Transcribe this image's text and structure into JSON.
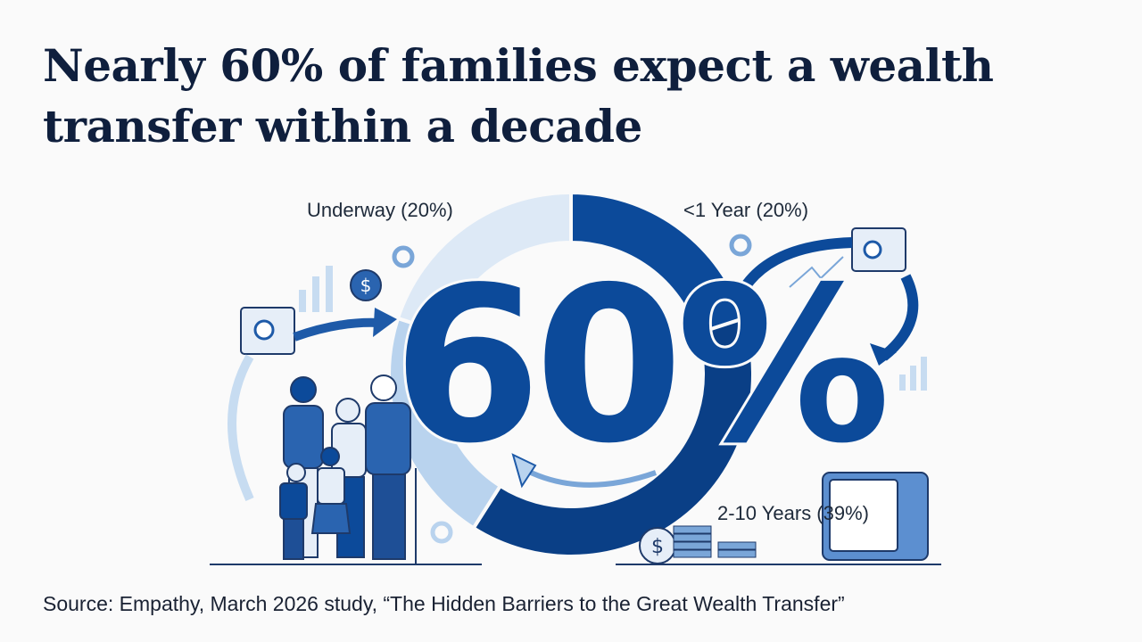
{
  "title": "Nearly 60% of families expect a wealth transfer within a decade",
  "headline_figure": "60%",
  "source": "Source: Empathy, March 2026 study, “The Hidden Barriers to the Great Wealth Transfer”",
  "chart_data": {
    "type": "pie",
    "variant": "donut",
    "title": "",
    "segments": [
      {
        "label": "<1 Year (20%)",
        "name": "<1 Year",
        "value": 20,
        "color": "#0c4a9a"
      },
      {
        "label": "2-10 Years (39%)",
        "name": "2-10 Years",
        "value": 39,
        "color": "#0a3f86"
      },
      {
        "label": "",
        "name": "",
        "value": 21,
        "color": "#b9d3ee"
      },
      {
        "label": "Underway (20%)",
        "name": "Underway",
        "value": 20,
        "color": "#dde9f6"
      }
    ],
    "center_label": "60%"
  },
  "icons": [
    "safe-icon",
    "dollar-coin-icon",
    "family-illustration",
    "coin-stack-icon",
    "arrow-icon",
    "bar-chart-icon",
    "mini-donut-icon"
  ]
}
